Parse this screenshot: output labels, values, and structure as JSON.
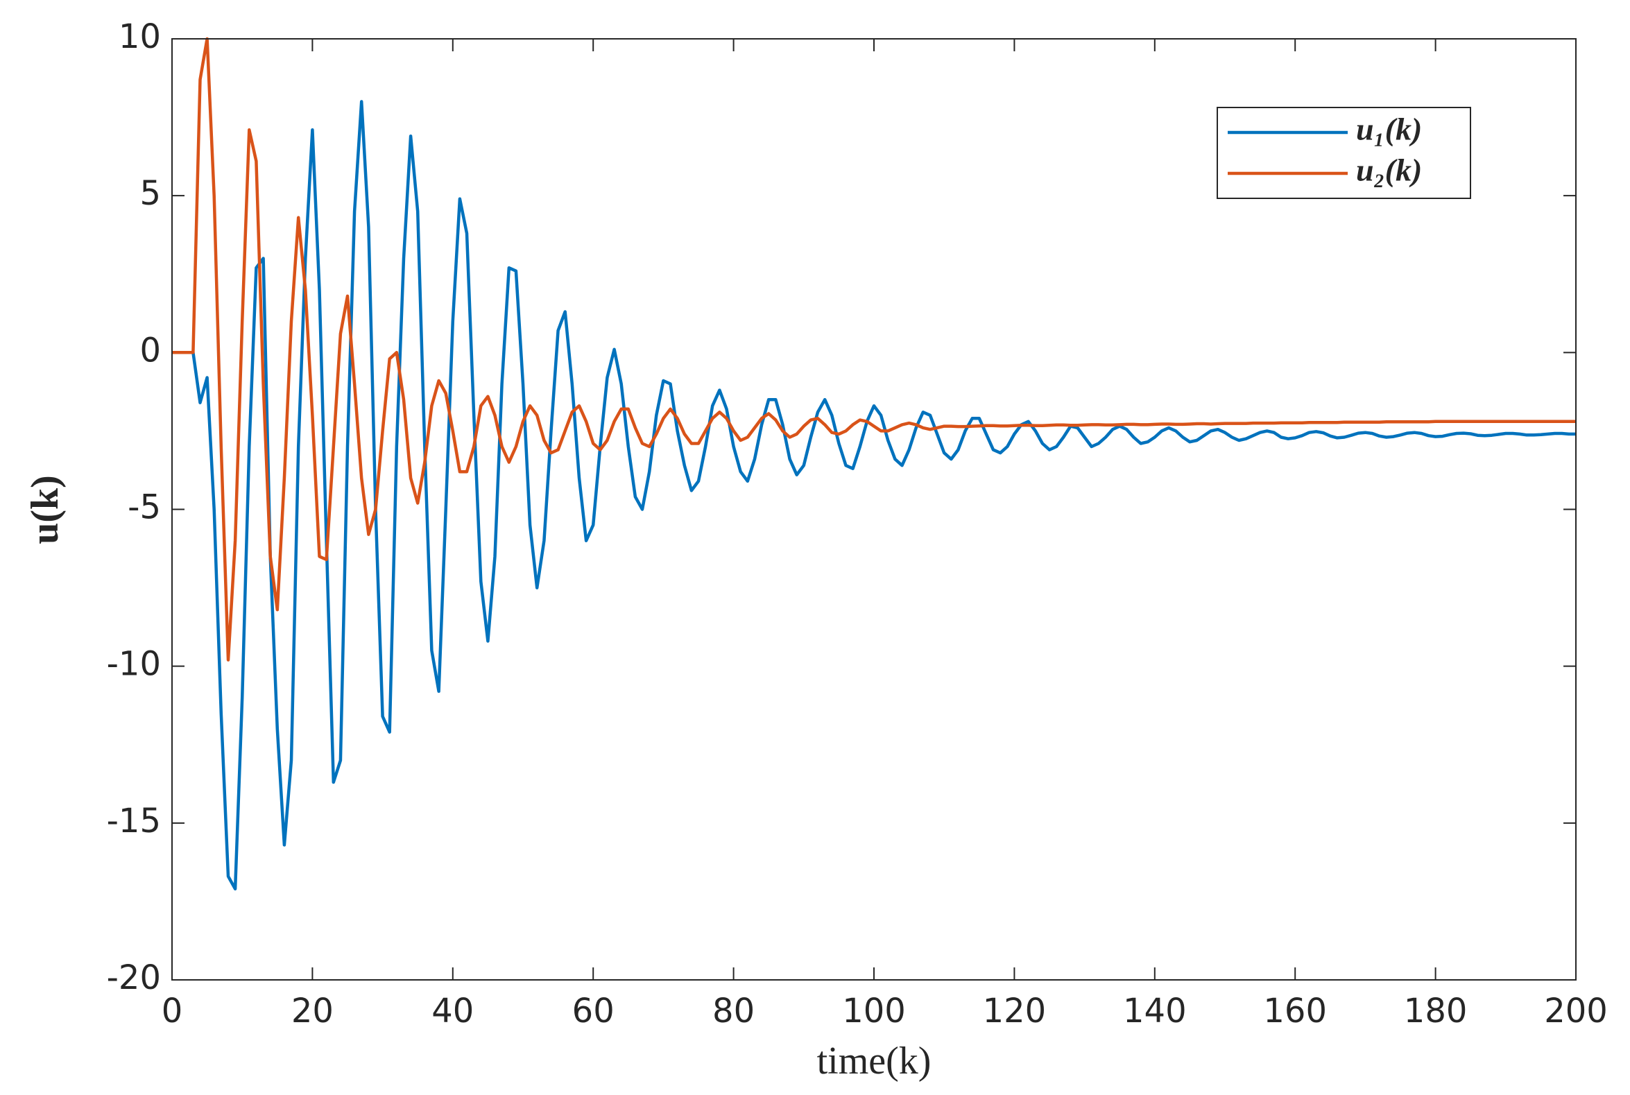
{
  "chart_data": {
    "type": "line",
    "xlabel": "time(k)",
    "ylabel": "u(k)",
    "x": [
      0,
      1,
      2,
      3,
      4,
      5,
      6,
      7,
      8,
      9,
      10,
      11,
      12,
      13,
      14,
      15,
      16,
      17,
      18,
      19,
      20,
      21,
      22,
      23,
      24,
      25,
      26,
      27,
      28,
      29,
      30,
      31,
      32,
      33,
      34,
      35,
      36,
      37,
      38,
      39,
      40,
      41,
      42,
      43,
      44,
      45,
      46,
      47,
      48,
      49,
      50,
      51,
      52,
      53,
      54,
      55,
      56,
      57,
      58,
      59,
      60,
      61,
      62,
      63,
      64,
      65,
      66,
      67,
      68,
      69,
      70,
      71,
      72,
      73,
      74,
      75,
      76,
      77,
      78,
      79,
      80,
      81,
      82,
      83,
      84,
      85,
      86,
      87,
      88,
      89,
      90,
      91,
      92,
      93,
      94,
      95,
      96,
      97,
      98,
      99,
      100,
      101,
      102,
      103,
      104,
      105,
      106,
      107,
      108,
      109,
      110,
      111,
      112,
      113,
      114,
      115,
      116,
      117,
      118,
      119,
      120,
      121,
      122,
      123,
      124,
      125,
      126,
      127,
      128,
      129,
      130,
      131,
      132,
      133,
      134,
      135,
      136,
      137,
      138,
      139,
      140,
      141,
      142,
      143,
      144,
      145,
      146,
      147,
      148,
      149,
      150,
      151,
      152,
      153,
      154,
      155,
      156,
      157,
      158,
      159,
      160,
      161,
      162,
      163,
      164,
      165,
      166,
      167,
      168,
      169,
      170,
      171,
      172,
      173,
      174,
      175,
      176,
      177,
      178,
      179,
      180,
      181,
      182,
      183,
      184,
      185,
      186,
      187,
      188,
      189,
      190,
      191,
      192,
      193,
      194,
      195,
      196,
      197,
      198,
      199,
      200
    ],
    "series": [
      {
        "name": "u₁(k)",
        "color": "#0072bd",
        "values": [
          0,
          0,
          0,
          0,
          -1.6,
          -0.8,
          -5,
          -11.5,
          -16.7,
          -17.1,
          -11,
          -3,
          2.7,
          3,
          -6.5,
          -12,
          -15.7,
          -13,
          -3,
          3,
          7.1,
          2,
          -6,
          -13.7,
          -13,
          -3,
          4.5,
          8,
          4,
          -5,
          -11.6,
          -12.1,
          -3,
          3,
          6.9,
          4.5,
          -3,
          -9.5,
          -10.8,
          -5,
          1,
          4.9,
          3.8,
          -2,
          -7.3,
          -9.2,
          -6.5,
          -1,
          2.7,
          2.6,
          -1,
          -5.5,
          -7.5,
          -6,
          -2.5,
          0.7,
          1.3,
          -1,
          -4,
          -6,
          -5.5,
          -3,
          -0.8,
          0.1,
          -1,
          -3,
          -4.6,
          -5,
          -3.8,
          -2,
          -0.9,
          -1,
          -2.5,
          -3.6,
          -4.4,
          -4.1,
          -3,
          -1.7,
          -1.2,
          -1.8,
          -3,
          -3.8,
          -4.1,
          -3.4,
          -2.3,
          -1.5,
          -1.5,
          -2.3,
          -3.4,
          -3.9,
          -3.6,
          -2.7,
          -1.9,
          -1.5,
          -2,
          -2.9,
          -3.6,
          -3.7,
          -3,
          -2.2,
          -1.7,
          -2,
          -2.8,
          -3.4,
          -3.6,
          -3.1,
          -2.4,
          -1.9,
          -2,
          -2.6,
          -3.2,
          -3.4,
          -3.1,
          -2.5,
          -2.1,
          -2.1,
          -2.6,
          -3.1,
          -3.2,
          -3,
          -2.6,
          -2.3,
          -2.2,
          -2.5,
          -2.9,
          -3.1,
          -3,
          -2.7,
          -2.35,
          -2.4,
          -2.7,
          -3.0,
          -2.9,
          -2.7,
          -2.45,
          -2.35,
          -2.45,
          -2.7,
          -2.9,
          -2.85,
          -2.7,
          -2.5,
          -2.4,
          -2.5,
          -2.7,
          -2.85,
          -2.8,
          -2.65,
          -2.5,
          -2.45,
          -2.55,
          -2.7,
          -2.8,
          -2.75,
          -2.65,
          -2.55,
          -2.5,
          -2.55,
          -2.7,
          -2.75,
          -2.72,
          -2.65,
          -2.55,
          -2.52,
          -2.56,
          -2.66,
          -2.72,
          -2.7,
          -2.64,
          -2.57,
          -2.55,
          -2.58,
          -2.66,
          -2.7,
          -2.68,
          -2.63,
          -2.57,
          -2.55,
          -2.58,
          -2.65,
          -2.68,
          -2.67,
          -2.62,
          -2.58,
          -2.57,
          -2.59,
          -2.64,
          -2.65,
          -2.64,
          -2.61,
          -2.58,
          -2.58,
          -2.6,
          -2.63,
          -2.63,
          -2.62,
          -2.6,
          -2.58,
          -2.58,
          -2.6,
          -2.6
        ]
      },
      {
        "name": "u₂(k)",
        "color": "#d95319",
        "values": [
          0,
          0,
          0,
          0,
          8.7,
          10,
          5,
          -3,
          -9.8,
          -6,
          1,
          7.1,
          6.1,
          -1,
          -6.5,
          -8.2,
          -4,
          1,
          4.3,
          2,
          -2,
          -6.5,
          -6.6,
          -3,
          0.6,
          1.8,
          -1,
          -4,
          -5.8,
          -5,
          -2.5,
          -0.2,
          0,
          -1.5,
          -4,
          -4.8,
          -3.5,
          -1.7,
          -0.9,
          -1.3,
          -2.5,
          -3.8,
          -3.8,
          -3,
          -1.7,
          -1.4,
          -2,
          -3,
          -3.5,
          -3,
          -2.2,
          -1.7,
          -2,
          -2.8,
          -3.2,
          -3.1,
          -2.5,
          -1.9,
          -1.7,
          -2.2,
          -2.9,
          -3.1,
          -2.8,
          -2.2,
          -1.8,
          -1.8,
          -2.4,
          -2.9,
          -3,
          -2.6,
          -2.1,
          -1.8,
          -2.1,
          -2.6,
          -2.9,
          -2.9,
          -2.5,
          -2.1,
          -1.9,
          -2.1,
          -2.5,
          -2.8,
          -2.7,
          -2.4,
          -2.1,
          -1.95,
          -2.15,
          -2.5,
          -2.7,
          -2.6,
          -2.35,
          -2.15,
          -2.1,
          -2.3,
          -2.55,
          -2.6,
          -2.5,
          -2.3,
          -2.15,
          -2.2,
          -2.35,
          -2.5,
          -2.5,
          -2.4,
          -2.3,
          -2.25,
          -2.3,
          -2.4,
          -2.45,
          -2.4,
          -2.35,
          -2.35,
          -2.36,
          -2.36,
          -2.35,
          -2.34,
          -2.33,
          -2.33,
          -2.34,
          -2.34,
          -2.33,
          -2.32,
          -2.32,
          -2.33,
          -2.33,
          -2.32,
          -2.31,
          -2.31,
          -2.32,
          -2.32,
          -2.31,
          -2.3,
          -2.3,
          -2.31,
          -2.31,
          -2.3,
          -2.29,
          -2.29,
          -2.3,
          -2.3,
          -2.29,
          -2.28,
          -2.28,
          -2.29,
          -2.29,
          -2.28,
          -2.27,
          -2.27,
          -2.28,
          -2.27,
          -2.26,
          -2.26,
          -2.26,
          -2.26,
          -2.25,
          -2.25,
          -2.25,
          -2.25,
          -2.24,
          -2.24,
          -2.24,
          -2.24,
          -2.23,
          -2.23,
          -2.23,
          -2.23,
          -2.23,
          -2.22,
          -2.22,
          -2.22,
          -2.22,
          -2.22,
          -2.22,
          -2.21,
          -2.21,
          -2.21,
          -2.21,
          -2.21,
          -2.21,
          -2.21,
          -2.2,
          -2.2,
          -2.2,
          -2.2,
          -2.2,
          -2.2,
          -2.2,
          -2.2,
          -2.2,
          -2.2,
          -2.2,
          -2.2,
          -2.2,
          -2.2,
          -2.2,
          -2.2,
          -2.2,
          -2.2,
          -2.2,
          -2.2,
          -2.2
        ]
      }
    ],
    "xlim": [
      0,
      200
    ],
    "xticks": [
      0,
      20,
      40,
      60,
      80,
      100,
      120,
      140,
      160,
      180,
      200
    ],
    "ylim": [
      -20,
      10
    ],
    "yticks": [
      -20,
      -15,
      -10,
      -5,
      0,
      5,
      10
    ],
    "grid": false,
    "legend": "upper right"
  }
}
